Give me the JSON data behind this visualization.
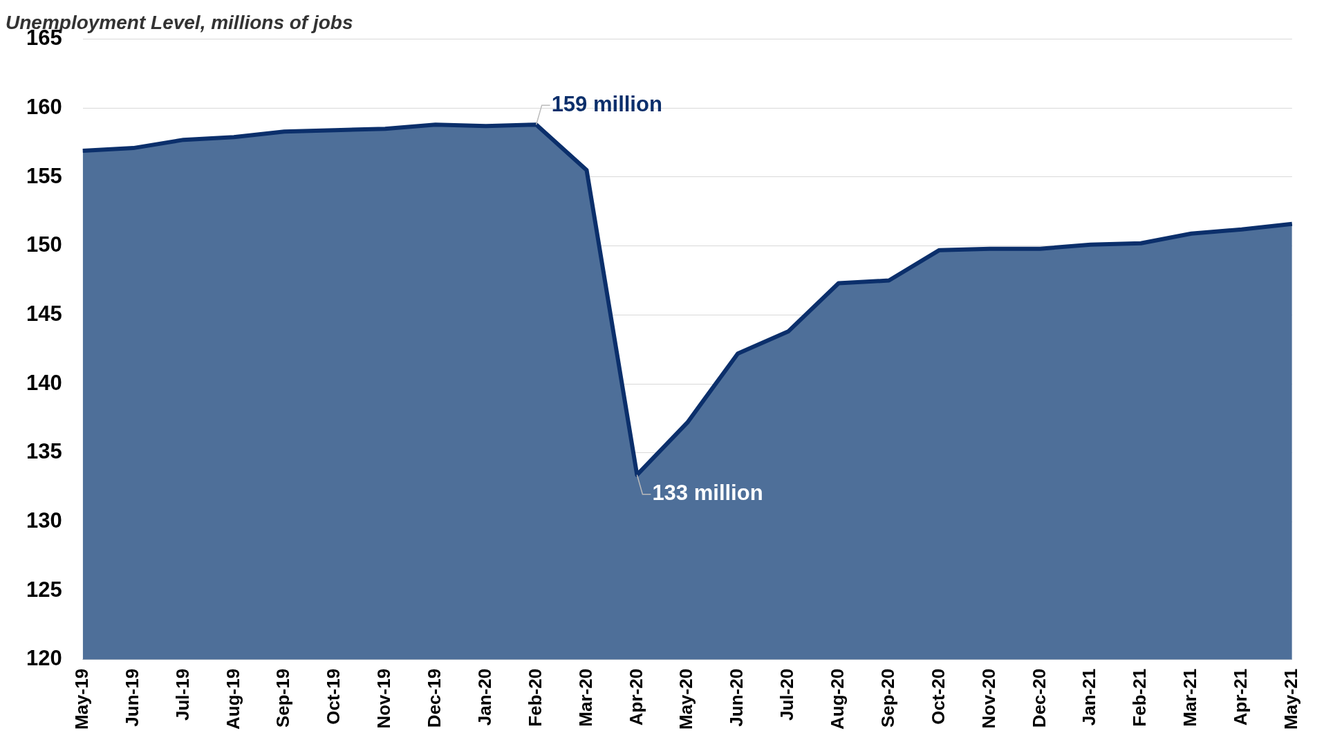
{
  "chart_data": {
    "type": "area",
    "title": "Unemployment Level, millions of jobs",
    "categories": [
      "May-19",
      "Jun-19",
      "Jul-19",
      "Aug-19",
      "Sep-19",
      "Oct-19",
      "Nov-19",
      "Dec-19",
      "Jan-20",
      "Feb-20",
      "Mar-20",
      "Apr-20",
      "May-20",
      "Jun-20",
      "Jul-20",
      "Aug-20",
      "Sep-20",
      "Oct-20",
      "Nov-20",
      "Dec-20",
      "Jan-21",
      "Feb-21",
      "Mar-21",
      "Apr-21",
      "May-21"
    ],
    "series": [
      {
        "color": "#0b2f6b",
        "values": [
          156.9,
          157.1,
          157.7,
          157.9,
          158.3,
          158.4,
          158.5,
          158.8,
          158.7,
          158.8,
          155.5,
          133.4,
          137.2,
          142.2,
          143.8,
          147.3,
          147.5,
          149.7,
          149.8,
          149.8,
          150.1,
          150.2,
          150.9,
          151.2,
          151.6
        ]
      }
    ],
    "ylim": [
      120,
      165
    ],
    "yticks": [
      120,
      125,
      130,
      135,
      140,
      145,
      150,
      155,
      160,
      165
    ],
    "grid": "y",
    "legend": false,
    "annotations": [
      {
        "text": "159 million",
        "x": "Feb-20",
        "y": 158.8
      },
      {
        "text": "133 million",
        "x": "Apr-20",
        "y": 133.4
      }
    ]
  }
}
